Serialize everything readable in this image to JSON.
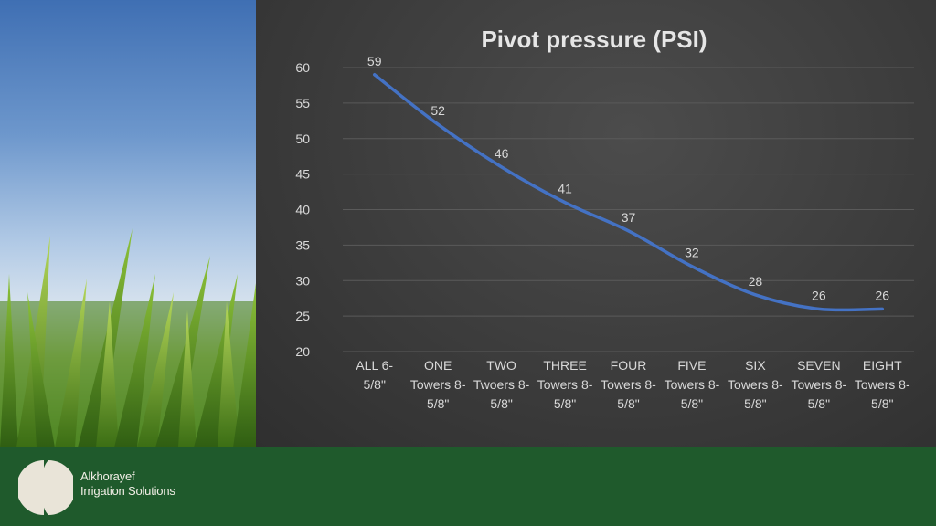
{
  "brand": {
    "line1": "Alkhorayef",
    "line2": "Irrigation Solutions"
  },
  "colors": {
    "panel_bg": "#3c3c3c",
    "footer_bg": "#1f5a2c",
    "line": "#4472c4",
    "text": "#d9d9d9"
  },
  "chart_data": {
    "type": "line",
    "title": "Pivot pressure (PSI)",
    "xlabel": "",
    "ylabel": "",
    "categories": [
      [
        "ALL 6-",
        "5/8\""
      ],
      [
        "ONE",
        "Towers 8-",
        "5/8\""
      ],
      [
        "TWO",
        "Twoers 8-",
        "5/8\""
      ],
      [
        "THREE",
        "Towers 8-",
        "5/8\""
      ],
      [
        "FOUR",
        "Towers 8-",
        "5/8\""
      ],
      [
        "FIVE",
        "Towers 8-",
        "5/8\""
      ],
      [
        "SIX",
        "Towers 8-",
        "5/8\""
      ],
      [
        "SEVEN",
        "Towers 8-",
        "5/8\""
      ],
      [
        "EIGHT",
        "Towers 8-",
        "5/8\""
      ]
    ],
    "series": [
      {
        "values": [
          59,
          52,
          46,
          41,
          37,
          32,
          28,
          26,
          26
        ]
      }
    ],
    "ylim": [
      20,
      60
    ],
    "yticks": [
      20,
      25,
      30,
      35,
      40,
      45,
      50,
      55,
      60
    ],
    "grid": true,
    "legend": "none",
    "data_labels": true
  }
}
